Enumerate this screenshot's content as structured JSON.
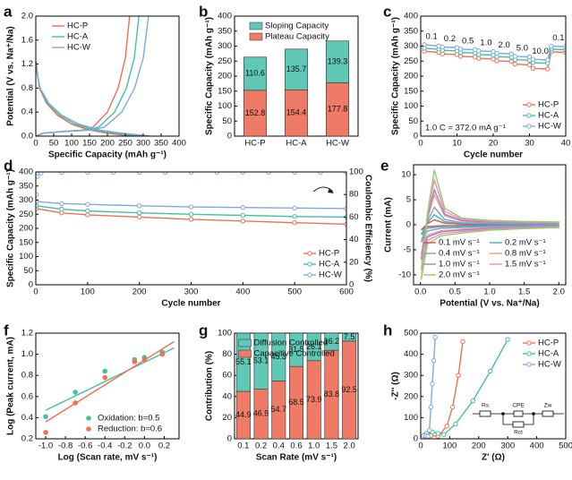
{
  "chart_data": [
    {
      "panel": "a",
      "type": "line",
      "xlabel": "Specific Capacity (mAh g⁻¹)",
      "ylabel": "Potential (V vs. Na⁺/Na)",
      "xlim": [
        0,
        400
      ],
      "ylim": [
        0,
        2.0
      ],
      "xticks": [
        0,
        50,
        100,
        150,
        200,
        250,
        300,
        350,
        400
      ],
      "yticks": [
        {
          "value": 0,
          "label": "0.0"
        },
        0.4,
        0.8,
        1.2,
        1.6,
        {
          "value": 2,
          "label": "2.0"
        }
      ],
      "legend": "upper left",
      "series": [
        {
          "name": "HC-P",
          "color": "#f07050",
          "x": [
            0,
            10,
            30,
            60,
            100,
            150,
            200,
            240,
            265,
            null,
            0,
            20,
            80,
            130,
            160,
            200,
            230,
            250,
            262
          ],
          "values": [
            1.25,
            0.8,
            0.55,
            0.35,
            0.2,
            0.1,
            0.05,
            0.02,
            0,
            null,
            0,
            0.05,
            0.08,
            0.1,
            0.15,
            0.4,
            0.8,
            1.3,
            2.0
          ]
        },
        {
          "name": "HC-A",
          "color": "#40c0a8",
          "x": [
            0,
            11,
            33,
            66,
            110,
            165,
            220,
            262,
            290,
            null,
            0,
            22,
            88,
            143,
            176,
            220,
            253,
            275,
            288
          ],
          "values": [
            1.2,
            0.8,
            0.55,
            0.35,
            0.2,
            0.1,
            0.05,
            0.02,
            0,
            null,
            0,
            0.05,
            0.08,
            0.1,
            0.15,
            0.4,
            0.8,
            1.3,
            2.0
          ]
        },
        {
          "name": "HC-W",
          "color": "#7fa8e0",
          "x": [
            0,
            12,
            36,
            72,
            120,
            180,
            240,
            288,
            318,
            null,
            0,
            24,
            96,
            156,
            192,
            240,
            276,
            300,
            315
          ],
          "values": [
            1.15,
            0.8,
            0.55,
            0.35,
            0.2,
            0.1,
            0.05,
            0.02,
            0,
            null,
            0,
            0.05,
            0.08,
            0.1,
            0.15,
            0.4,
            0.8,
            1.3,
            2.0
          ]
        }
      ]
    },
    {
      "panel": "b",
      "type": "bar",
      "stacked": true,
      "ylabel": "Specific Capacity (mAh g⁻¹)",
      "categories": [
        "HC-P",
        "HC-A",
        "HC-W"
      ],
      "ylim": [
        0,
        400
      ],
      "yticks": [
        0,
        50,
        100,
        150,
        200,
        250,
        300,
        350,
        400
      ],
      "legend": "upper center",
      "series": [
        {
          "name": "Plateau Capacity",
          "color": "#ef7b66",
          "values": [
            152.8,
            154.4,
            177.8
          ]
        },
        {
          "name": "Sloping Capacity",
          "color": "#5fc8b6",
          "values": [
            110.6,
            135.7,
            139.3
          ]
        }
      ]
    },
    {
      "panel": "c",
      "type": "line",
      "markers": true,
      "xlabel": "Cycle number",
      "ylabel": "Specific Capacity (mAh g⁻¹)",
      "xlim": [
        0,
        40
      ],
      "ylim": [
        0,
        400
      ],
      "xticks": [
        0,
        10,
        20,
        30,
        40
      ],
      "yticks": [
        0,
        50,
        100,
        150,
        200,
        250,
        300,
        350,
        400
      ],
      "legend": "lower right",
      "x": [
        1,
        5,
        6,
        10,
        11,
        15,
        16,
        20,
        21,
        25,
        26,
        30,
        31,
        35,
        36,
        40
      ],
      "series": [
        {
          "name": "HC-P",
          "color": "#f07050",
          "values": [
            283,
            279,
            274,
            272,
            266,
            264,
            259,
            257,
            251,
            249,
            240,
            237,
            226,
            224,
            281,
            279
          ]
        },
        {
          "name": "HC-A",
          "color": "#40c0a8",
          "values": [
            293,
            290,
            286,
            284,
            279,
            277,
            272,
            270,
            265,
            263,
            255,
            253,
            245,
            243,
            290,
            288
          ]
        },
        {
          "name": "HC-W",
          "color": "#7fa8e0",
          "values": [
            305,
            300,
            297,
            295,
            290,
            288,
            284,
            282,
            276,
            274,
            266,
            264,
            256,
            254,
            300,
            298
          ]
        }
      ],
      "rate_labels": [
        "0.1",
        "0.2",
        "0.5",
        "1.0",
        "2.0",
        "5.0",
        "10.0",
        "0.1"
      ],
      "note": "1.0 C = 372.0 mA g⁻¹"
    },
    {
      "panel": "d",
      "type": "line",
      "markers": true,
      "xlabel": "Cycle number",
      "ylabel": "Specific Capacity (mAh g⁻¹)",
      "y2label": "Coulombic Efficiency (%)",
      "xlim": [
        0,
        600
      ],
      "ylim": [
        0,
        400
      ],
      "y2lim": [
        0,
        100
      ],
      "xticks": [
        0,
        100,
        200,
        300,
        400,
        500,
        600
      ],
      "yticks": [
        0,
        50,
        100,
        150,
        200,
        250,
        300,
        350,
        400
      ],
      "y2ticks": [
        0,
        20,
        40,
        60,
        80,
        100
      ],
      "legend": "lower right",
      "series": [
        {
          "name": "HC-P",
          "color": "#f07050",
          "x": [
            1,
            50,
            100,
            200,
            300,
            400,
            500,
            600
          ],
          "values": [
            270,
            255,
            248,
            240,
            232,
            226,
            220,
            215
          ]
        },
        {
          "name": "HC-A",
          "color": "#40c0a8",
          "x": [
            1,
            50,
            100,
            200,
            300,
            400,
            500,
            600
          ],
          "values": [
            280,
            268,
            262,
            255,
            250,
            246,
            242,
            240
          ]
        },
        {
          "name": "HC-W",
          "color": "#7fa8e0",
          "x": [
            1,
            50,
            100,
            200,
            300,
            400,
            500,
            600
          ],
          "values": [
            295,
            288,
            285,
            280,
            276,
            274,
            272,
            270
          ]
        },
        {
          "color": "#7fa8e0",
          "axis": "y2",
          "linestyle": "none",
          "x": [
            1,
            3,
            10,
            50,
            100,
            150,
            200,
            250,
            300,
            350,
            400,
            450,
            500,
            550,
            600
          ],
          "values": [
            80,
            96,
            99,
            99.5,
            99.6,
            99.6,
            99.7,
            99.7,
            99.7,
            99.7,
            99.8,
            99.8,
            99.8,
            99.8,
            99.8
          ]
        }
      ]
    },
    {
      "panel": "e",
      "type": "line",
      "xlabel": "Potential (V vs. Na⁺/Na)",
      "ylabel": "Current (mA)",
      "xlim": [
        -0.1,
        2.1
      ],
      "ylim": [
        -12,
        12
      ],
      "xticks": [
        {
          "value": 0,
          "label": "0.0"
        },
        0.5,
        {
          "value": 1,
          "label": "1.0"
        },
        1.5,
        {
          "value": 2,
          "label": "2.0"
        }
      ],
      "yticks": [
        -10,
        -5,
        0,
        5,
        10
      ],
      "legend": "lower center",
      "legend_columns": 2,
      "x": [
        0.01,
        0.1,
        0.2,
        0.35,
        0.6,
        1.0,
        1.5,
        2.0,
        2.0,
        1.5,
        1.0,
        0.6,
        0.3,
        0.1,
        0.01
      ],
      "series": [
        {
          "name": "0.1 mV s⁻¹",
          "color": "#e8504a",
          "values": [
            -1,
            0.2,
            1,
            0.3,
            0.12,
            0.08,
            0.06,
            0.05,
            -0.05,
            -0.07,
            -0.1,
            -0.15,
            -0.2,
            -0.35,
            -1
          ]
        },
        {
          "name": "0.2 mV s⁻¹",
          "color": "#3cb4a8",
          "values": [
            -2,
            0.4,
            2,
            0.6,
            0.24,
            0.16,
            0.12,
            0.1,
            -0.1,
            -0.14,
            -0.2,
            -0.3,
            -0.4,
            -0.7,
            -2
          ]
        },
        {
          "name": "0.4 mV s⁻¹",
          "color": "#7b9ce0",
          "values": [
            -3.5,
            0.7,
            3.5,
            1.05,
            0.42,
            0.28,
            0.21,
            0.18,
            -0.18,
            -0.25,
            -0.35,
            -0.53,
            -0.7,
            -1.23,
            -3.5
          ]
        },
        {
          "name": "0.8 mV s⁻¹",
          "color": "#f0a070",
          "values": [
            -6,
            1.2,
            6,
            1.8,
            0.72,
            0.48,
            0.36,
            0.3,
            -0.3,
            -0.42,
            -0.6,
            -0.9,
            -1.2,
            -2.1,
            -6
          ]
        },
        {
          "name": "1.0 mV s⁻¹",
          "color": "#a080d0",
          "values": [
            -7,
            1.4,
            7,
            2.1,
            0.84,
            0.56,
            0.42,
            0.35,
            -0.35,
            -0.49,
            -0.7,
            -1.05,
            -1.4,
            -2.45,
            -7
          ]
        },
        {
          "name": "1.5 mV s⁻¹",
          "color": "#f08cc0",
          "values": [
            -9,
            1.8,
            9,
            2.7,
            1.08,
            0.72,
            0.54,
            0.45,
            -0.45,
            -0.63,
            -0.9,
            -1.35,
            -1.8,
            -3.15,
            -9
          ]
        },
        {
          "name": "2.0 mV s⁻¹",
          "color": "#90d060",
          "values": [
            -11,
            2.2,
            11,
            3.3,
            1.32,
            0.88,
            0.66,
            0.55,
            -0.55,
            -0.77,
            -1.1,
            -1.65,
            -2.2,
            -3.85,
            -11
          ]
        }
      ]
    },
    {
      "panel": "f",
      "type": "scatter",
      "xlabel": "Log (Scan rate, mV s⁻¹)",
      "ylabel": "Log (Peak current, mA)",
      "xlim": [
        -1.1,
        0.35
      ],
      "ylim": [
        0.2,
        1.2
      ],
      "xticks": [
        {
          "value": -1,
          "label": "-1.0"
        },
        -0.8,
        -0.6,
        -0.4,
        -0.2,
        {
          "value": 0,
          "label": "0.0"
        },
        0.2
      ],
      "yticks": [
        0.2,
        0.4,
        0.6,
        0.8,
        {
          "value": 1,
          "label": "1.0"
        },
        1.2
      ],
      "legend": "lower right",
      "x": [
        -1.0,
        -0.7,
        -0.4,
        -0.1,
        0.0,
        0.18
      ],
      "series": [
        {
          "name": "Oxidation: b=0.5",
          "color": "#40c0a8",
          "values": [
            0.41,
            0.64,
            0.84,
            0.95,
            0.97,
            1.02
          ],
          "fit": {
            "x": [
              -1.0,
              0.3
            ],
            "values": [
              0.47,
              1.06
            ]
          }
        },
        {
          "name": "Reduction: b=0.6",
          "color": "#f07050",
          "values": [
            0.26,
            0.54,
            0.78,
            0.93,
            0.95,
            1.0
          ],
          "fit": {
            "x": [
              -1.0,
              0.3
            ],
            "values": [
              0.36,
              1.12
            ]
          }
        }
      ]
    },
    {
      "panel": "g",
      "type": "bar",
      "stacked": true,
      "xlabel": "Scan Rate (mV s⁻¹)",
      "ylabel": "Contribution (%)",
      "categories": [
        "0.1",
        "0.2",
        "0.4",
        "0.6",
        "1.0",
        "1.5",
        "2.0"
      ],
      "ylim": [
        0,
        100
      ],
      "yticks": [
        0,
        20,
        40,
        60,
        80,
        100
      ],
      "legend": "upper center",
      "series": [
        {
          "name": "Capacitive Controlled",
          "color": "#ef7b66",
          "values": [
            44.9,
            46.9,
            54.7,
            68.5,
            73.9,
            83.8,
            92.5
          ]
        },
        {
          "name": "Diffusion Controlled",
          "color": "#5fc8b6",
          "values": [
            55.1,
            53.1,
            45.3,
            31.5,
            26.1,
            16.2,
            7.5
          ]
        }
      ]
    },
    {
      "panel": "h",
      "type": "line",
      "markers": true,
      "xlabel": "Z' (Ω)",
      "ylabel": "-Z'' (Ω)",
      "xlim": [
        0,
        500
      ],
      "ylim": [
        0,
        500
      ],
      "xticks": [
        0,
        100,
        200,
        300,
        400,
        500
      ],
      "yticks": [
        0,
        100,
        200,
        300,
        400,
        500
      ],
      "legend": "upper right",
      "series": [
        {
          "name": "HC-P",
          "color": "#f07050",
          "x": [
            5,
            15,
            25,
            35,
            60,
            90,
            110,
            130,
            145
          ],
          "values": [
            5,
            20,
            22,
            15,
            12,
            60,
            150,
            300,
            460
          ]
        },
        {
          "name": "HC-A",
          "color": "#40c0a8",
          "x": [
            5,
            20,
            40,
            60,
            80,
            120,
            180,
            240,
            300
          ],
          "values": [
            5,
            25,
            32,
            25,
            20,
            70,
            180,
            320,
            470
          ]
        },
        {
          "name": "HC-W",
          "color": "#7fa8e0",
          "x": [
            5,
            10,
            18,
            25,
            30,
            35,
            40,
            45,
            50
          ],
          "values": [
            5,
            15,
            15,
            12,
            40,
            150,
            260,
            370,
            480
          ]
        }
      ],
      "inset_labels": [
        "Rs",
        "CPE",
        "Rct",
        "Zw"
      ]
    }
  ]
}
